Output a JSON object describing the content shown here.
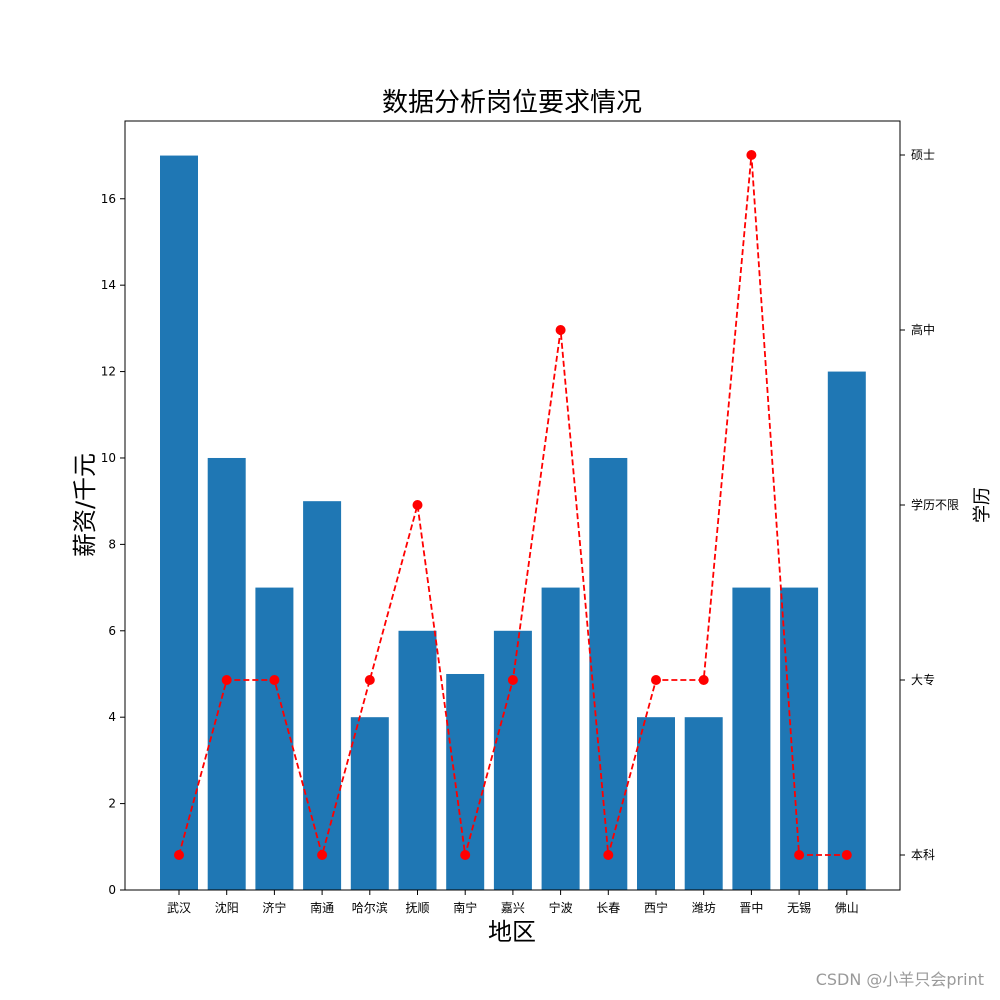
{
  "chart_data": {
    "type": "bar",
    "title": "数据分析岗位要求情况",
    "xlabel": "地区",
    "ylabel": "薪资/千元",
    "y2label": "学历",
    "categories": [
      "武汉",
      "沈阳",
      "济宁",
      "南通",
      "哈尔滨",
      "抚顺",
      "南宁",
      "嘉兴",
      "宁波",
      "长春",
      "西宁",
      "潍坊",
      "晋中",
      "无锡",
      "佛山"
    ],
    "ylim": [
      0,
      17.8
    ],
    "yticks": [
      0,
      2,
      4,
      6,
      8,
      10,
      12,
      14,
      16
    ],
    "series": [
      {
        "values": [
          17,
          10,
          7,
          9,
          4,
          6,
          5,
          6,
          7,
          10,
          4,
          4,
          7,
          7,
          12
        ],
        "color": "#1f77b4"
      }
    ],
    "line_series": {
      "values": [
        "本科",
        "大专",
        "大专",
        "本科",
        "大专",
        "学历不限",
        "本科",
        "大专",
        "高中",
        "本科",
        "大专",
        "大专",
        "硕士",
        "本科",
        "本科"
      ],
      "color": "#ff0000",
      "style": "dashed",
      "marker": "circle"
    },
    "y2_categories": [
      "本科",
      "大专",
      "学历不限",
      "高中",
      "硕士"
    ],
    "grid": false
  },
  "watermark": "CSDN @小羊只会print"
}
